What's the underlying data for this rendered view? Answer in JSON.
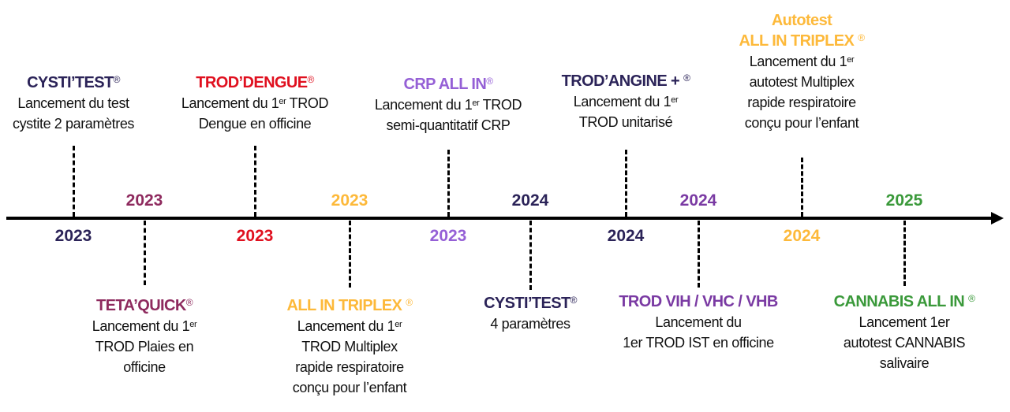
{
  "colors": {
    "navy": "#2b2358",
    "red": "#e0101f",
    "lavender": "#9560d6",
    "plum": "#8e2a5e",
    "orange": "#fdb93a",
    "purple": "#7a3aa3",
    "green": "#3a993a"
  },
  "events": [
    {
      "side": "top",
      "year": "2023",
      "color": "#2b2358",
      "title": [
        "CYSTI’TEST"
      ],
      "reg": "®",
      "lines": [
        [
          {
            "text": "Lancement du test"
          }
        ],
        [
          {
            "text": "cystite 2 paramètres"
          }
        ]
      ]
    },
    {
      "side": "bottom",
      "year": "2023",
      "color": "#8e2a5e",
      "title": [
        "TETA’QUICK"
      ],
      "reg": "®",
      "lines": [
        [
          {
            "text": "Lancement du 1"
          },
          {
            "sup": "er"
          }
        ],
        [
          {
            "text": "TROD Plaies en"
          }
        ],
        [
          {
            "text": "officine"
          }
        ]
      ]
    },
    {
      "side": "top",
      "year": "2023",
      "color": "#e0101f",
      "title": [
        "TROD’DENGUE"
      ],
      "reg": "®",
      "lines": [
        [
          {
            "text": "Lancement du 1"
          },
          {
            "sup": "er"
          },
          {
            "text": " TROD"
          }
        ],
        [
          {
            "text": "Dengue en officine"
          }
        ]
      ]
    },
    {
      "side": "bottom",
      "year": "2023",
      "color": "#fdb93a",
      "title": [
        "ALL IN TRIPLEX "
      ],
      "reg": "®",
      "lines": [
        [
          {
            "text": "Lancement du 1"
          },
          {
            "sup": "er"
          }
        ],
        [
          {
            "text": "TROD Multiplex"
          }
        ],
        [
          {
            "text": "rapide  respiratoire"
          }
        ],
        [
          {
            "text": "conçu pour l’enfant"
          }
        ]
      ]
    },
    {
      "side": "top",
      "year": "2023",
      "color": "#9560d6",
      "title": [
        "CRP ALL IN"
      ],
      "reg": "®",
      "lines": [
        [
          {
            "text": "Lancement du 1"
          },
          {
            "sup": "er"
          },
          {
            "text": " TROD"
          }
        ],
        [
          {
            "text": "semi-quantitatif CRP"
          }
        ]
      ]
    },
    {
      "side": "bottom",
      "year": "2024",
      "color": "#2b2358",
      "title": [
        "CYSTI’TEST"
      ],
      "reg": "®",
      "lines": [
        [
          {
            "text": "4 paramètres"
          }
        ]
      ]
    },
    {
      "side": "top",
      "year": "2024",
      "color": "#2b2358",
      "title": [
        "TROD’ANGINE + "
      ],
      "reg": "®",
      "lines": [
        [
          {
            "text": "Lancement du 1"
          },
          {
            "sup": "er"
          }
        ],
        [
          {
            "text": "TROD unitarisé"
          }
        ]
      ]
    },
    {
      "side": "bottom",
      "year": "2024",
      "color": "#7a3aa3",
      "title": [
        "TROD VIH / VHC / VHB"
      ],
      "reg": "",
      "lines": [
        [
          {
            "text": "Lancement du"
          }
        ],
        [
          {
            "text": "1er TROD IST en officine"
          }
        ]
      ]
    },
    {
      "side": "top",
      "year": "2024",
      "color": "#fdb93a",
      "title": [
        "Autotest",
        "ALL IN TRIPLEX "
      ],
      "reg": "®",
      "lines": [
        [
          {
            "text": "Lancement du 1"
          },
          {
            "sup": "er"
          }
        ],
        [
          {
            "text": "autotest Multiplex"
          }
        ],
        [
          {
            "text": "rapide respiratoire"
          }
        ],
        [
          {
            "text": "conçu pour l’enfant"
          }
        ]
      ]
    },
    {
      "side": "bottom",
      "year": "2025",
      "color": "#3a993a",
      "title": [
        "CANNABIS ALL IN "
      ],
      "reg": "®",
      "lines": [
        [
          {
            "text": "Lancement 1er"
          }
        ],
        [
          {
            "text": "autotest CANNABIS"
          }
        ],
        [
          {
            "text": "salivaire"
          }
        ]
      ]
    }
  ]
}
